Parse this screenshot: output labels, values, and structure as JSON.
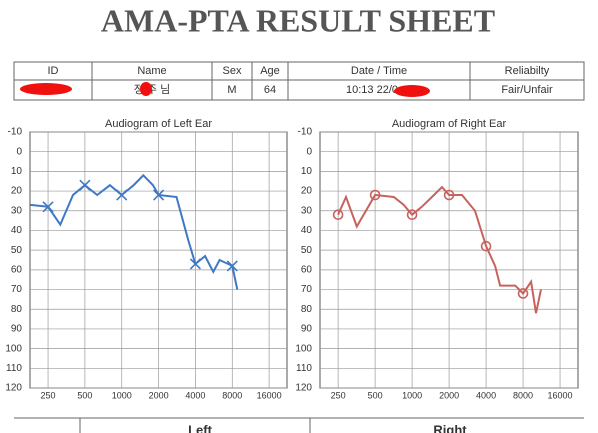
{
  "header": {
    "title": "AMA-PTA RESULT SHEET"
  },
  "table": {
    "headers": [
      "ID",
      "Name",
      "Sex",
      "Age",
      "Date / Time",
      "Reliabilty"
    ],
    "row": {
      "name": "정 주 님",
      "sex": "M",
      "age": "64",
      "datetime": "10:13 22/0",
      "reliability": "Fair/Unfair"
    }
  },
  "footer": {
    "left": "Left",
    "right": "Right"
  },
  "chart_data": [
    {
      "type": "line",
      "title": "Audiogram of Left Ear",
      "xscale": "log",
      "grid": true,
      "xlim": [
        178,
        22400
      ],
      "ylim": [
        -10,
        120
      ],
      "y_inverted": true,
      "xticks": [
        250,
        500,
        1000,
        2000,
        4000,
        8000,
        16000
      ],
      "yticks": [
        -10,
        0,
        10,
        20,
        30,
        40,
        50,
        60,
        70,
        80,
        90,
        100,
        110,
        120
      ],
      "series": [
        {
          "color": "#3f78c4",
          "marker": "none",
          "x": [
            180,
            250,
            315,
            400,
            500,
            630,
            800,
            1000,
            1250,
            1500,
            1800,
            2000,
            2800,
            3500,
            4000,
            4800,
            5600,
            6300,
            8000,
            8800
          ],
          "values": [
            27,
            28,
            37,
            22,
            17,
            22,
            17,
            22,
            17,
            12,
            17,
            22,
            23,
            45,
            57,
            53,
            61,
            55,
            58,
            70
          ]
        },
        {
          "color": "#3f78c4",
          "marker": "x",
          "x": [
            250,
            500,
            1000,
            2000,
            4000,
            8000
          ],
          "values": [
            28,
            17,
            22,
            22,
            57,
            58
          ]
        }
      ]
    },
    {
      "type": "line",
      "title": "Audiogram of Right Ear",
      "xscale": "log",
      "grid": true,
      "xlim": [
        178,
        22400
      ],
      "ylim": [
        -10,
        120
      ],
      "y_inverted": true,
      "xticks": [
        250,
        500,
        1000,
        2000,
        4000,
        8000,
        16000
      ],
      "yticks": [
        -10,
        0,
        10,
        20,
        30,
        40,
        50,
        60,
        70,
        80,
        90,
        100,
        110,
        120
      ],
      "series": [
        {
          "color": "#c8625e",
          "marker": "none",
          "x": [
            250,
            290,
            355,
            500,
            710,
            855,
            1000,
            1200,
            1450,
            1750,
            2000,
            2550,
            3250,
            4000,
            4740,
            5200,
            6900,
            8000,
            9300,
            10200,
            11200
          ],
          "values": [
            32,
            23,
            38,
            22,
            23,
            27,
            32,
            28,
            23,
            18,
            22,
            22,
            30,
            48,
            58,
            68,
            68,
            72,
            66,
            82,
            70
          ]
        },
        {
          "color": "#c8625e",
          "marker": "o",
          "x": [
            250,
            500,
            1000,
            2000,
            4000,
            8000
          ],
          "values": [
            32,
            22,
            32,
            22,
            48,
            72
          ]
        }
      ]
    }
  ]
}
